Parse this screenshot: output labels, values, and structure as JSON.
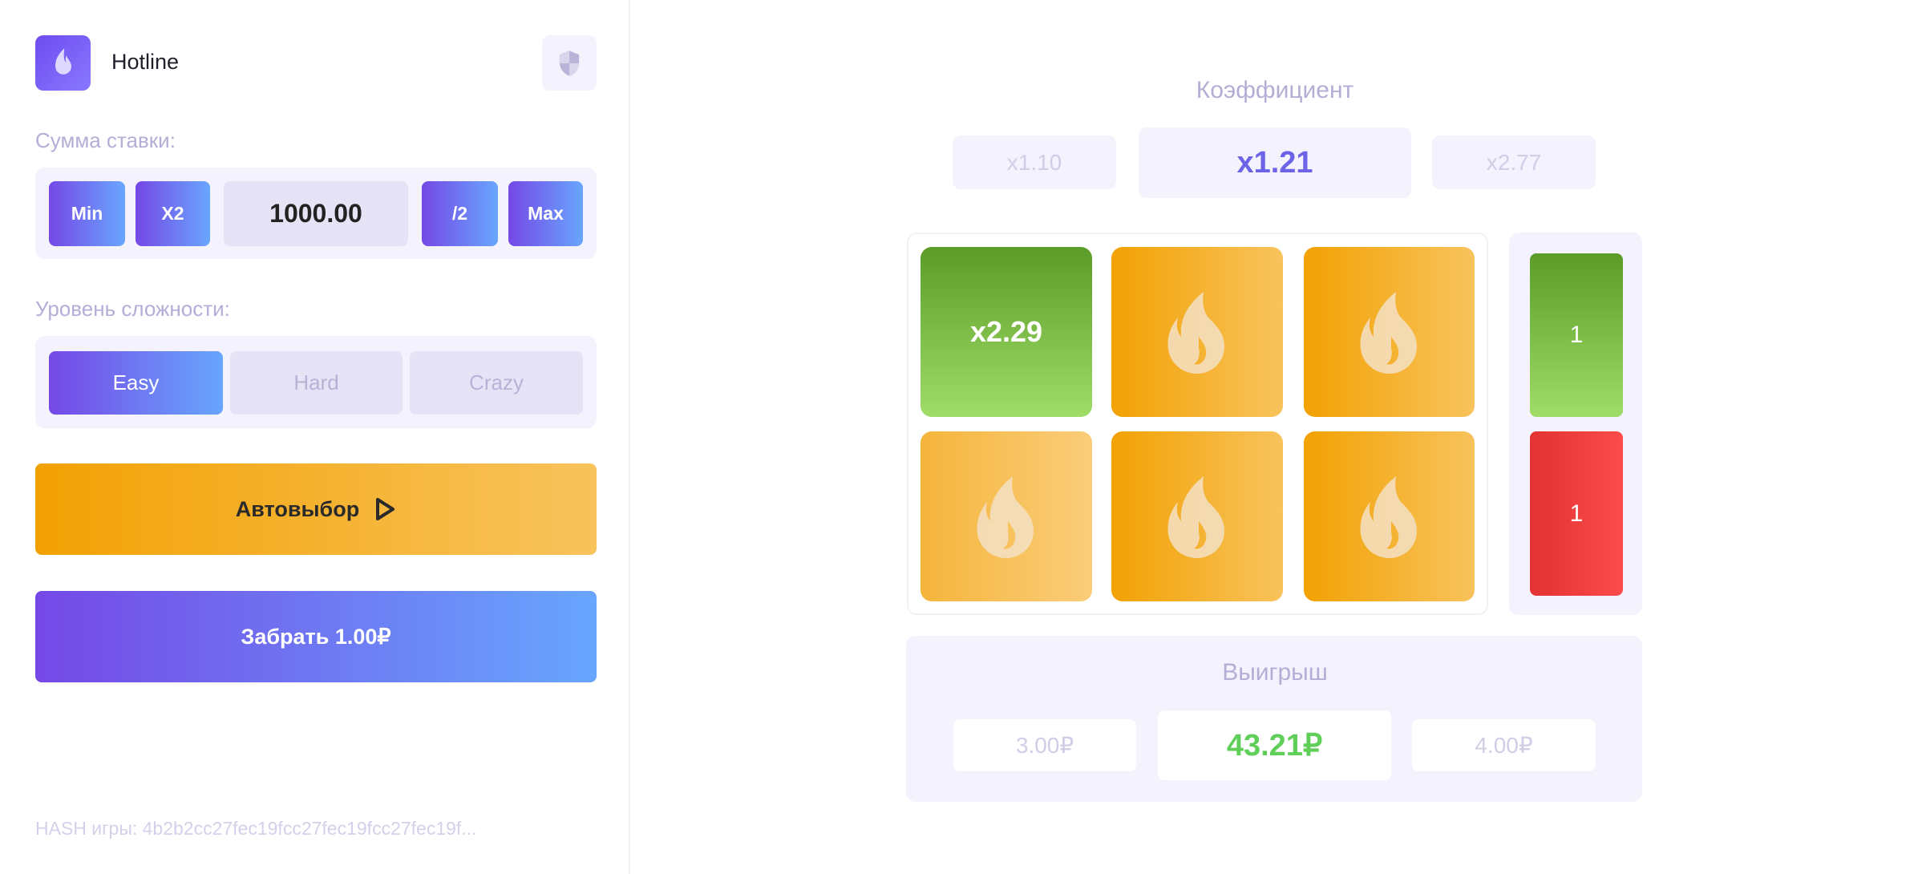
{
  "header": {
    "title": "Hotline",
    "logo_icon": "flame-icon",
    "fair_icon": "shield-icon"
  },
  "bet": {
    "label": "Сумма ставки:",
    "min": "Min",
    "double": "X2",
    "amount": "1000.00",
    "half": "/2",
    "max": "Max"
  },
  "difficulty": {
    "label": "Уровень сложности:",
    "options": [
      {
        "label": "Easy",
        "selected": true
      },
      {
        "label": "Hard",
        "selected": false
      },
      {
        "label": "Crazy",
        "selected": false
      }
    ]
  },
  "autoselect": {
    "label": "Автовыбор",
    "icon": "play-icon"
  },
  "cashout": {
    "label": "Забрать 1.00₽"
  },
  "hash": {
    "text": "HASH игры: 4b2b2cc27fec19fcc27fec19fcc27fec19f..."
  },
  "coefficient": {
    "title": "Коэффициент",
    "prev": "x1.10",
    "current": "x1.21",
    "next": "x2.77"
  },
  "grid": {
    "tiles": [
      {
        "state": "revealed",
        "label": "x2.29"
      },
      {
        "state": "hidden"
      },
      {
        "state": "hidden"
      },
      {
        "state": "hidden"
      },
      {
        "state": "hidden"
      },
      {
        "state": "hidden"
      }
    ]
  },
  "counters": {
    "green": "1",
    "red": "1"
  },
  "winnings": {
    "title": "Выигрыш",
    "prev": "3.00₽",
    "current": "43.21₽",
    "next": "4.00₽"
  },
  "colors": {
    "accent": "#6c63e8",
    "green": "#5fcf5a",
    "orange": "#f2a103",
    "red": "#e53535"
  }
}
